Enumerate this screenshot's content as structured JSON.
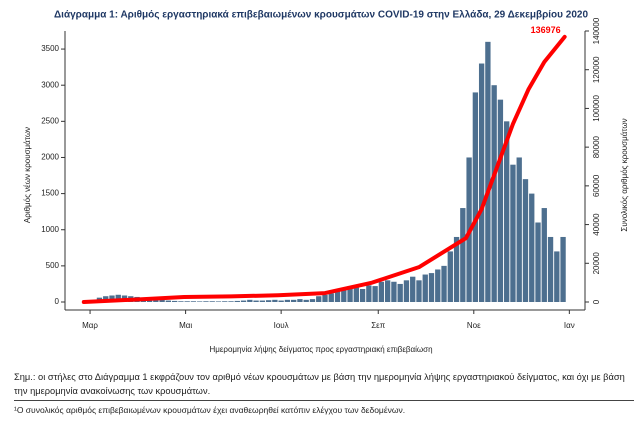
{
  "chart_data": {
    "type": "bar-line",
    "title": "Διάγραμμα 1: Αριθμός εργαστηριακά επιβεβαιωμένων κρουσμάτων COVID-19 στην Ελλάδα, 29 Δεκεμβρίου 2020",
    "xlabel": "Ημερομηνία λήψης δείγματος προς εργαστηριακή επιβεβαίωση",
    "ylabel": "Αριθμός νέων κρουσμάτων",
    "y2label": "Συνολικός αριθμός κρουσμάτων",
    "xlim": [
      -16,
      316
    ],
    "xticks": [
      {
        "value": 0,
        "label": "Μαρ"
      },
      {
        "value": 61,
        "label": "Μαι"
      },
      {
        "value": 122,
        "label": "Ιουλ"
      },
      {
        "value": 184,
        "label": "Σεπ"
      },
      {
        "value": 245,
        "label": "Νοε"
      },
      {
        "value": 306,
        "label": "Ιαν"
      }
    ],
    "ylim": [
      0,
      3750
    ],
    "yticks": [
      0,
      500,
      1000,
      1500,
      2000,
      2500,
      3000,
      3500
    ],
    "y2lim": [
      0,
      140000
    ],
    "y2ticks": [
      0,
      20000,
      40000,
      60000,
      80000,
      100000,
      120000,
      140000
    ],
    "x": [
      -2,
      2,
      6,
      10,
      14,
      18,
      22,
      26,
      30,
      34,
      38,
      42,
      46,
      50,
      54,
      58,
      62,
      66,
      70,
      74,
      78,
      82,
      86,
      90,
      94,
      98,
      102,
      106,
      110,
      114,
      118,
      122,
      126,
      130,
      134,
      138,
      142,
      146,
      150,
      154,
      158,
      162,
      166,
      170,
      174,
      178,
      182,
      186,
      190,
      194,
      198,
      202,
      206,
      210,
      214,
      218,
      222,
      226,
      230,
      234,
      238,
      242,
      246,
      250,
      254,
      258,
      262,
      266,
      270,
      274,
      278,
      282,
      286,
      290,
      294,
      298,
      302
    ],
    "values": [
      5,
      20,
      60,
      80,
      90,
      100,
      90,
      80,
      70,
      60,
      60,
      40,
      30,
      20,
      15,
      10,
      10,
      10,
      8,
      10,
      10,
      8,
      10,
      10,
      15,
      20,
      30,
      20,
      20,
      25,
      30,
      20,
      30,
      30,
      40,
      30,
      40,
      80,
      100,
      120,
      150,
      200,
      220,
      200,
      180,
      230,
      220,
      280,
      300,
      280,
      250,
      300,
      350,
      300,
      380,
      400,
      450,
      500,
      700,
      900,
      1300,
      2000,
      2900,
      3300,
      3600,
      3000,
      2800,
      2500,
      1900,
      2000,
      1700,
      1500,
      1100,
      1300,
      900,
      700,
      900
    ],
    "color": "#4d6f8f",
    "cumulative": {
      "axis": "y2",
      "color": "#ff0000",
      "x": [
        -4,
        30,
        60,
        90,
        120,
        150,
        180,
        210,
        240,
        250,
        260,
        270,
        280,
        290,
        303
      ],
      "values": [
        0,
        1300,
        2600,
        2900,
        3500,
        4600,
        10000,
        18000,
        33000,
        48000,
        70000,
        92000,
        110000,
        124000,
        136976
      ]
    },
    "annotations": [
      {
        "text": "136976"
      }
    ]
  },
  "notes": [
    "Σημ.: οι στήλες στο Διάγραμμα 1 εκφράζουν τον αριθμό νέων κρουσμάτων με βάση την ημερομηνία λήψης εργαστηριακού δείγματος, και όχι με βάση την ημερομηνία ανακοίνωσης των κρουσμάτων.",
    "¹Ο συνολικός αριθμός επιβεβαιωμένων κρουσμάτων έχει αναθεωρηθεί κατόπιν ελέγχου των δεδομένων."
  ]
}
